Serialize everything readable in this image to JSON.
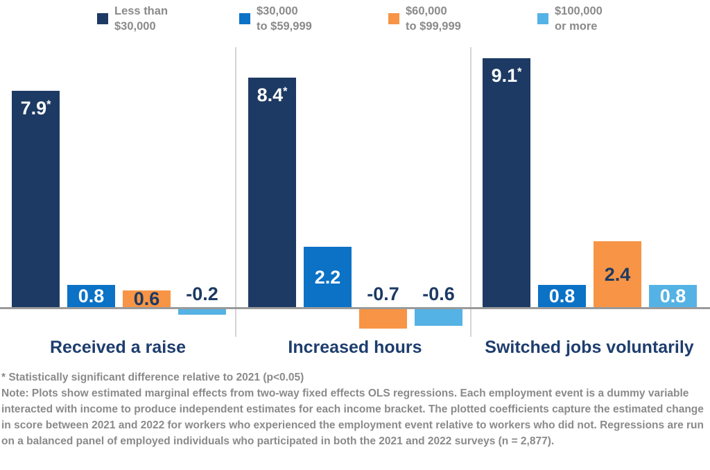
{
  "legend": {
    "items": [
      {
        "name": "Less than $30,000",
        "label_line1": "Less than",
        "label_line2": "$30,000",
        "color": "#1c3a63"
      },
      {
        "name": "$30,000 to $59,999",
        "label_line1": "$30,000",
        "label_line2": "to $59,999",
        "color": "#0b72c6"
      },
      {
        "name": "$60,000 to $99,999",
        "label_line1": "$60,000",
        "label_line2": "to $99,999",
        "color": "#f79445"
      },
      {
        "name": "$100,000 or more",
        "label_line1": "$100,000",
        "label_line2": "or more",
        "color": "#55b2e4"
      }
    ]
  },
  "chart_data": {
    "type": "bar",
    "title": "",
    "xlabel": "",
    "ylabel": "",
    "ylim": [
      -1,
      9.5
    ],
    "grid": false,
    "legend_position": "top",
    "categories": [
      "Received a raise",
      "Increased hours",
      "Switched jobs voluntarily"
    ],
    "series": [
      {
        "name": "Less than $30,000",
        "color": "#1c3a63",
        "label_color": "#ffffff",
        "values": [
          7.9,
          8.4,
          9.1
        ],
        "labels": [
          "7.9*",
          "8.4*",
          "9.1*"
        ]
      },
      {
        "name": "$30,000 to $59,999",
        "color": "#0b72c6",
        "label_color": "#ffffff",
        "values": [
          0.8,
          2.2,
          0.8
        ],
        "labels": [
          "0.8",
          "2.2",
          "0.8"
        ]
      },
      {
        "name": "$60,000 to $99,999",
        "color": "#f79445",
        "label_color": "#1c3a63",
        "values": [
          0.6,
          -0.7,
          2.4
        ],
        "labels": [
          "0.6",
          "-0.7",
          "2.4"
        ]
      },
      {
        "name": "$100,000 or more",
        "color": "#55b2e4",
        "label_color": "#ffffff",
        "values": [
          -0.2,
          -0.6,
          0.8
        ],
        "labels": [
          "-0.2",
          "-0.6",
          "0.8"
        ]
      }
    ],
    "negative_label_color": "#1c3a63",
    "axis_color": "#9a9a9a",
    "divider_color": "#d4d4d4",
    "category_label_color": "#1e3d6e"
  },
  "footnotes": {
    "significance": "* Statistically significant difference relative to 2021 (p<0.05)",
    "note": "Note: Plots show estimated marginal effects from two-way fixed effects OLS regressions. Each employment event is a dummy variable interacted with income to produce independent estimates for each income bracket. The plotted coefficients capture the estimated change in score between 2021 and 2022 for workers who experienced the employment event relative to workers who did not. Regressions are run on a balanced panel of employed individuals who participated in both the 2021 and 2022 surveys (n = 2,877)."
  }
}
